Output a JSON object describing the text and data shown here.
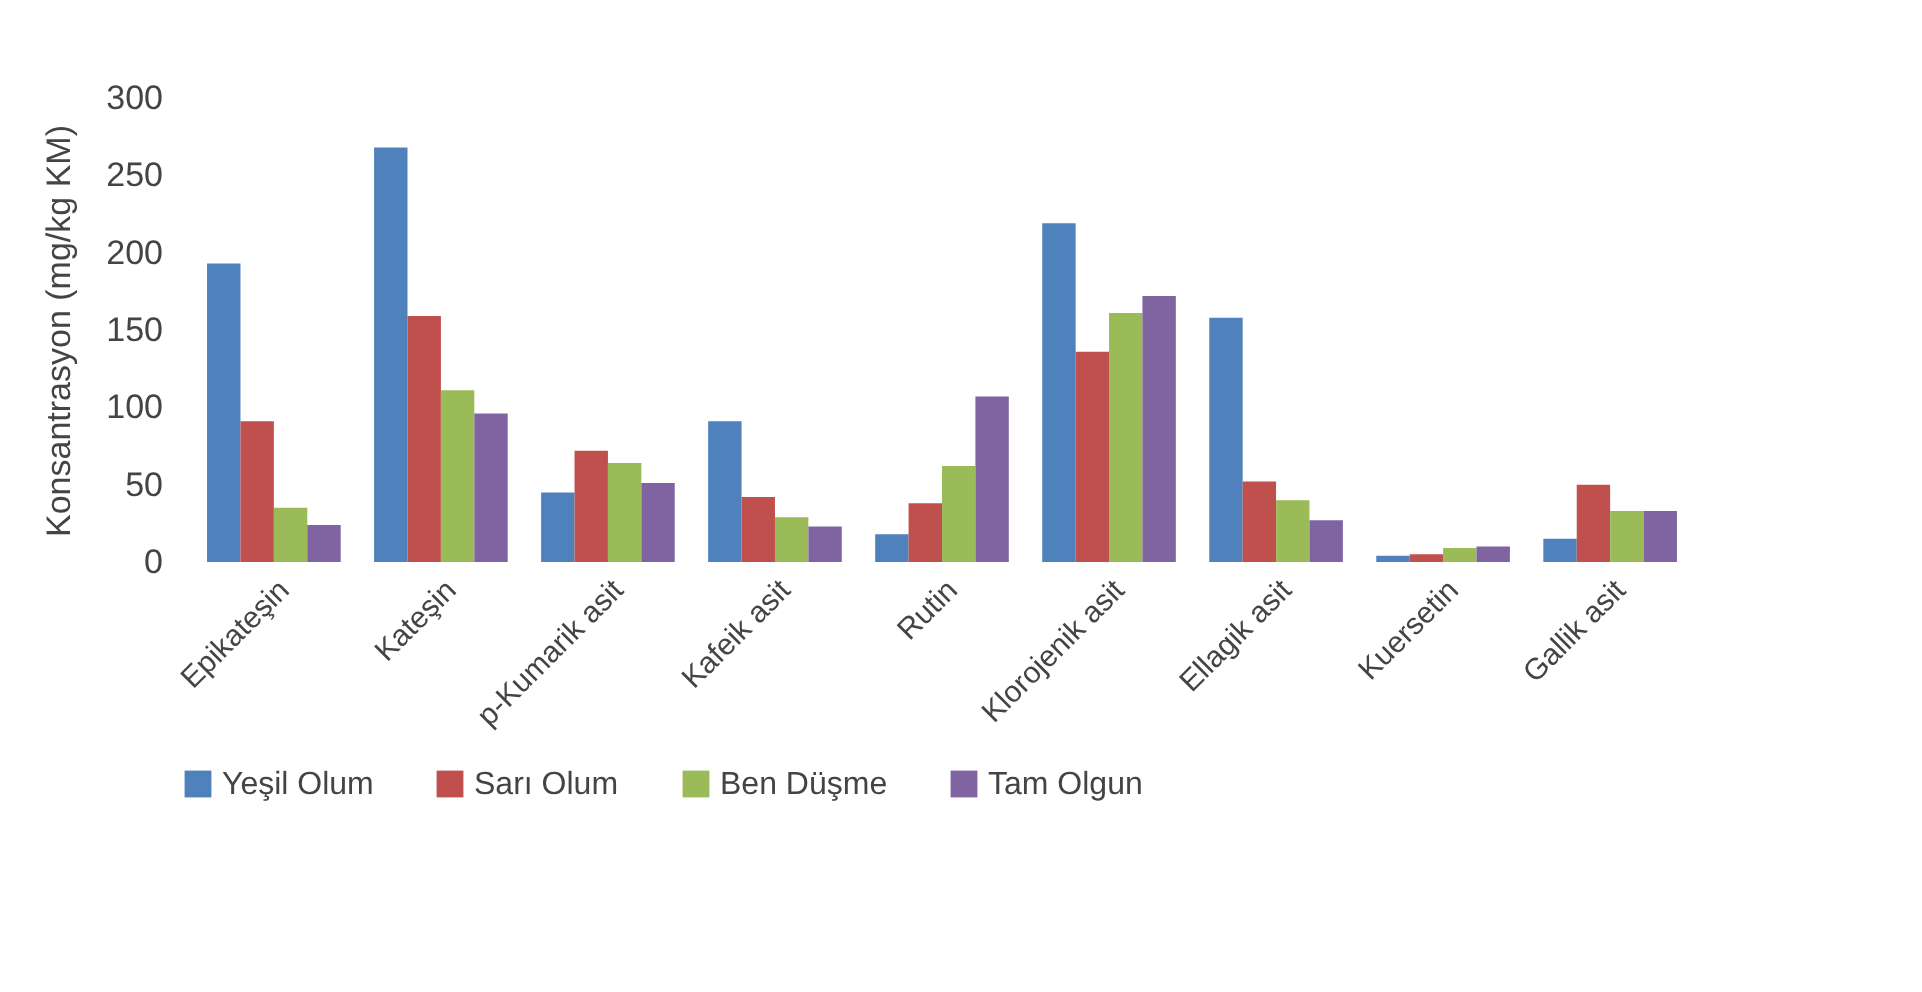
{
  "chart_data": {
    "type": "bar",
    "ylabel": "Konsantrasyon (mg/kg KM)",
    "categories": [
      "Epikateşin",
      "Kateşin",
      "p-Kumarik asit",
      "Kafeik asit",
      "Rutin",
      "Klorojenik asit",
      "Ellagik asit",
      "Kuersetin",
      "Gallik asit"
    ],
    "series": [
      {
        "name": "Yeşil Olum",
        "color": "#4f81bd",
        "values": [
          193,
          268,
          45,
          91,
          18,
          219,
          158,
          4,
          15
        ]
      },
      {
        "name": "Sarı Olum",
        "color": "#c0504d",
        "values": [
          91,
          159,
          72,
          42,
          38,
          136,
          52,
          5,
          50
        ]
      },
      {
        "name": "Ben Düşme",
        "color": "#9bbb59",
        "values": [
          35,
          111,
          64,
          29,
          62,
          161,
          40,
          9,
          33
        ]
      },
      {
        "name": "Tam Olgun",
        "color": "#8064a2",
        "values": [
          24,
          96,
          51,
          23,
          107,
          172,
          27,
          10,
          33
        ]
      }
    ],
    "ylim": [
      0,
      300
    ],
    "yticks": [
      0,
      50,
      100,
      150,
      200,
      250,
      300
    ],
    "grid": false,
    "legend": "bottom"
  }
}
